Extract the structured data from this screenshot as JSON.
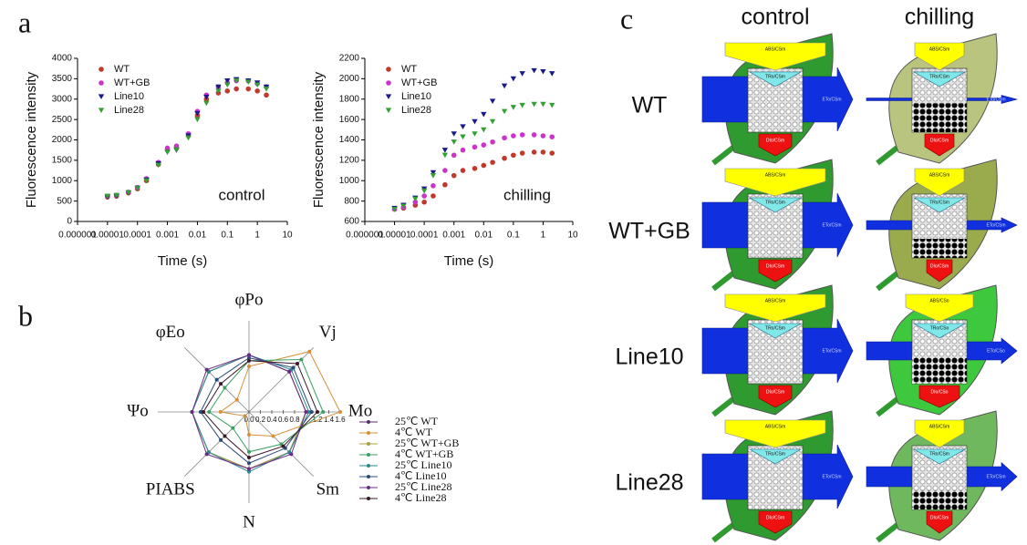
{
  "panel_labels": [
    "a",
    "b",
    "c"
  ],
  "chart_data": [
    {
      "type": "scatter",
      "annotation": "control",
      "x_label": "Time (s)",
      "y_label": "Fluorescence intensity",
      "xscale": "log",
      "xlim": [
        1e-06,
        10
      ],
      "xticks": [
        1e-06,
        1e-05,
        0.0001,
        0.001,
        0.01,
        0.1,
        1,
        10
      ],
      "ylim": [
        0,
        4000
      ],
      "yticks": [
        0,
        500,
        1000,
        1500,
        2000,
        2500,
        3000,
        3500,
        4000
      ],
      "x": [
        1e-05,
        2e-05,
        5e-05,
        0.0001,
        0.0002,
        0.0005,
        0.001,
        0.002,
        0.005,
        0.01,
        0.02,
        0.05,
        0.1,
        0.2,
        0.5,
        1,
        2
      ],
      "series": [
        {
          "name": "WT",
          "color": "#c0392b",
          "marker": "circle",
          "values": [
            600,
            620,
            700,
            800,
            1000,
            1400,
            1750,
            1800,
            2100,
            2600,
            3000,
            3150,
            3200,
            3250,
            3250,
            3200,
            3100
          ]
        },
        {
          "name": "WT+GB",
          "color": "#cc33cc",
          "marker": "circle",
          "values": [
            620,
            640,
            720,
            830,
            1050,
            1450,
            1800,
            1850,
            2150,
            2700,
            3100,
            3300,
            3400,
            3450,
            3450,
            3380,
            3300
          ]
        },
        {
          "name": "Line10",
          "color": "#1a1a8a",
          "marker": "triangle-down",
          "values": [
            600,
            620,
            700,
            820,
            1020,
            1420,
            1700,
            1750,
            2100,
            2650,
            3050,
            3300,
            3450,
            3480,
            3450,
            3400,
            3300
          ]
        },
        {
          "name": "Line28",
          "color": "#33a033",
          "marker": "triangle-down",
          "values": [
            620,
            640,
            710,
            810,
            1000,
            1380,
            1700,
            1760,
            2050,
            2500,
            2900,
            3200,
            3350,
            3450,
            3420,
            3350,
            3250
          ]
        }
      ]
    },
    {
      "type": "scatter",
      "annotation": "chilling",
      "x_label": "Time (s)",
      "y_label": "Fluorescence intensity",
      "xscale": "log",
      "xlim": [
        1e-06,
        10
      ],
      "xticks": [
        1e-06,
        1e-05,
        0.0001,
        0.001,
        0.01,
        0.1,
        1,
        10
      ],
      "ylim": [
        600,
        2200
      ],
      "yticks": [
        600,
        800,
        1000,
        1200,
        1400,
        1600,
        1800,
        2000,
        2200
      ],
      "x": [
        1e-05,
        2e-05,
        5e-05,
        0.0001,
        0.0002,
        0.0005,
        0.001,
        0.002,
        0.005,
        0.01,
        0.02,
        0.05,
        0.1,
        0.2,
        0.5,
        1,
        2
      ],
      "series": [
        {
          "name": "WT",
          "color": "#c0392b",
          "marker": "circle",
          "values": [
            720,
            730,
            760,
            790,
            850,
            960,
            1050,
            1100,
            1120,
            1150,
            1180,
            1220,
            1250,
            1270,
            1280,
            1280,
            1270
          ]
        },
        {
          "name": "WT+GB",
          "color": "#cc33cc",
          "marker": "circle",
          "values": [
            720,
            740,
            790,
            850,
            950,
            1100,
            1250,
            1300,
            1330,
            1350,
            1380,
            1420,
            1440,
            1450,
            1450,
            1440,
            1430
          ]
        },
        {
          "name": "Line10",
          "color": "#1a1a8a",
          "marker": "triangle-down",
          "values": [
            730,
            760,
            830,
            920,
            1080,
            1300,
            1460,
            1530,
            1580,
            1650,
            1780,
            1930,
            2000,
            2050,
            2080,
            2070,
            2050
          ]
        },
        {
          "name": "Line28",
          "color": "#33a033",
          "marker": "triangle-down",
          "values": [
            720,
            750,
            820,
            900,
            1050,
            1250,
            1380,
            1430,
            1460,
            1500,
            1580,
            1680,
            1720,
            1740,
            1750,
            1750,
            1740
          ]
        }
      ]
    },
    {
      "type": "radar",
      "categories": [
        "φPo",
        "Vj",
        "Mo",
        "Sm",
        "N",
        "PIABS",
        "Ψo",
        "φEo"
      ],
      "rlim": [
        0,
        1.6
      ],
      "rticks": [
        {
          "value": 0,
          "label": "0.0"
        },
        0.2,
        0.4,
        0.6,
        0.8,
        1.2,
        1.4,
        1.6
      ],
      "series": [
        {
          "name": "25℃ WT",
          "color": "#5b2a6e",
          "values": [
            1,
            1,
            1,
            1,
            1,
            1,
            1,
            1
          ]
        },
        {
          "name": "4℃ WT",
          "color": "#d4903a",
          "values": [
            0.8,
            1.5,
            1.6,
            0.6,
            0.4,
            0.1,
            0.5,
            0.3
          ]
        },
        {
          "name": "25℃ WT+GB",
          "color": "#a8a040",
          "values": [
            1,
            1,
            1,
            1,
            1,
            1,
            1,
            1
          ]
        },
        {
          "name": "4℃ WT+GB",
          "color": "#3aa060",
          "values": [
            0.9,
            1.3,
            1.3,
            0.8,
            0.7,
            0.4,
            0.7,
            0.6
          ]
        },
        {
          "name": "25℃ Line10",
          "color": "#2a8a8a",
          "values": [
            1,
            1.05,
            1.05,
            1,
            1.05,
            1,
            1,
            1
          ]
        },
        {
          "name": "4℃ Line10",
          "color": "#2a4a7a",
          "values": [
            0.95,
            1.1,
            1.1,
            0.9,
            0.9,
            0.7,
            0.85,
            0.8
          ]
        },
        {
          "name": "25℃ Line28",
          "color": "#6a2a8a",
          "values": [
            1,
            1,
            1,
            1.05,
            1,
            1.05,
            1,
            1.05
          ]
        },
        {
          "name": "4℃ Line28",
          "color": "#3a1a2a",
          "values": [
            0.9,
            1.2,
            1.2,
            0.85,
            0.8,
            0.6,
            0.8,
            0.7
          ]
        }
      ]
    }
  ],
  "leaf_models": {
    "columns": [
      "control",
      "chilling"
    ],
    "rows": [
      {
        "label": "WT",
        "cells": [
          {
            "abs": "ABS/CSm",
            "tro": "TRo/CSm",
            "eto": "ETo/CSm",
            "dio": "DIo/CSm"
          },
          {
            "abs": "ABS/CSm",
            "tro": "TRo/CSm",
            "eto": "ETo/CSm",
            "dio": "DIo/CSm"
          }
        ]
      },
      {
        "label": "WT+GB",
        "cells": [
          {
            "abs": "ABS/CSm",
            "tro": "TRo/CSm",
            "eto": "ETo/CSm",
            "dio": "DIo/CSm"
          },
          {
            "abs": "ABS/CSm",
            "tro": "TRo/CSm",
            "eto": "ETo/CSm",
            "dio": "DIo/CSm"
          }
        ]
      },
      {
        "label": "Line10",
        "cells": [
          {
            "abs": "ABS/CSm",
            "tro": "TRo/CSm",
            "eto": "ETo/CSm",
            "dio": "DIo/CSm"
          },
          {
            "abs": "ABS/CSo",
            "tro": "TRo/CSo",
            "eto": "ETo/CSo",
            "dio": "DIo/CSo"
          }
        ]
      },
      {
        "label": "Line28",
        "cells": [
          {
            "abs": "ABS/CSm",
            "tro": "TRo/CSm",
            "eto": "ETo/CSm",
            "dio": "DIo/CSm"
          },
          {
            "abs": "ABS/CSm",
            "tro": "TRo/CSm",
            "eto": "ETo/CSm",
            "dio": "DIo/CSm"
          }
        ]
      }
    ]
  }
}
